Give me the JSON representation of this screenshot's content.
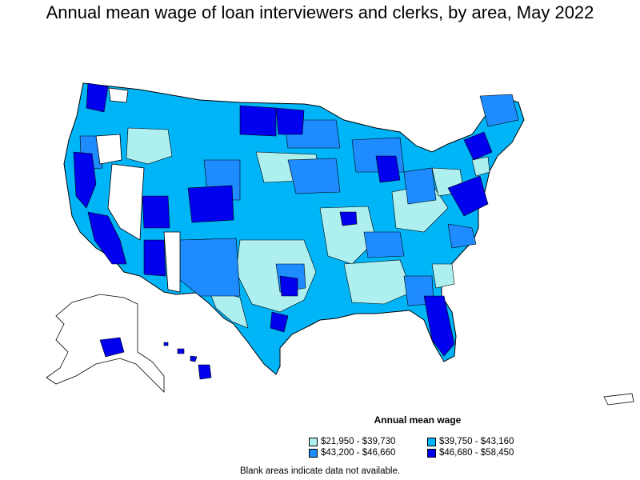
{
  "title": "Annual mean wage of loan interviewers and clerks, by area, May 2022",
  "legend": {
    "title": "Annual mean wage",
    "items": [
      {
        "label": "$21,950 - $39,730",
        "color": "#aef0f0"
      },
      {
        "label": "$39,750 - $43,160",
        "color": "#00b4f8"
      },
      {
        "label": "$43,200 - $46,660",
        "color": "#1e8cff"
      },
      {
        "label": "$46,680 - $58,450",
        "color": "#0000ee"
      }
    ]
  },
  "note": "Blank areas indicate data not available.",
  "colors": {
    "border": "#000000",
    "no_data": "#ffffff"
  }
}
